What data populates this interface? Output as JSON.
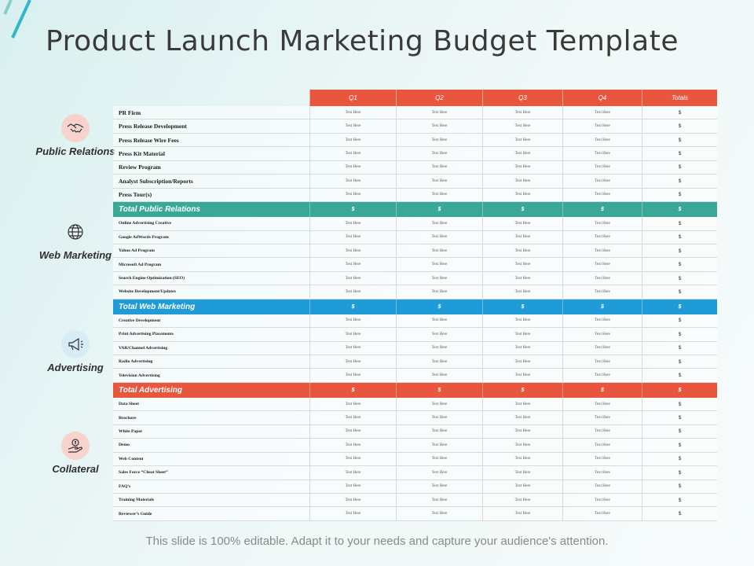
{
  "title": "Product Launch Marketing Budget Template",
  "footer": "This slide is 100% editable. Adapt it to your needs and capture your audience's attention.",
  "colors": {
    "header": "#e8563e",
    "pr_total": "#3aa897",
    "web_total": "#1f9bd7",
    "adv_total": "#e8563e",
    "deco": "#35b6c6"
  },
  "columns": [
    "Q1",
    "Q2",
    "Q3",
    "Q4",
    "Totals"
  ],
  "placeholder": "Text Here",
  "currency": "$",
  "sections": [
    {
      "key": "pr",
      "name": "Public Relations",
      "icon": "handshake-icon",
      "rows": [
        "PR Firm",
        "Press Release Development",
        "Press Release Wire Fees",
        "Press Kit Material",
        "Review Program",
        "Analyst Subscription/Reports",
        "Press Tour(s)"
      ],
      "total_label": "Total Public Relations"
    },
    {
      "key": "web",
      "name": "Web Marketing",
      "icon": "globe-icon",
      "rows": [
        "Online Advertising Creative",
        "Google AdWords Program",
        "Yahoo Ad Program",
        "Microsoft Ad Program",
        "Search Engine Optimization (SEO)",
        "Website Development/Updates"
      ],
      "total_label": "Total Web Marketing"
    },
    {
      "key": "adv",
      "name": "Advertising",
      "icon": "megaphone-icon",
      "rows": [
        "Creative Development",
        "Print Advertising Placements",
        "VAR/Channel Advertising",
        "Radio Advertising",
        "Television Advertising"
      ],
      "total_label": "Total Advertising"
    },
    {
      "key": "col",
      "name": "Collateral",
      "icon": "money-hand-icon",
      "rows": [
        "Data Sheet",
        "Brochure",
        "White Paper",
        "Demo",
        "Web Content",
        "Sales Force “Cheat Sheet”",
        "FAQ’s",
        "Training Materials",
        "Reviewer’s Guide"
      ],
      "total_label": ""
    }
  ]
}
